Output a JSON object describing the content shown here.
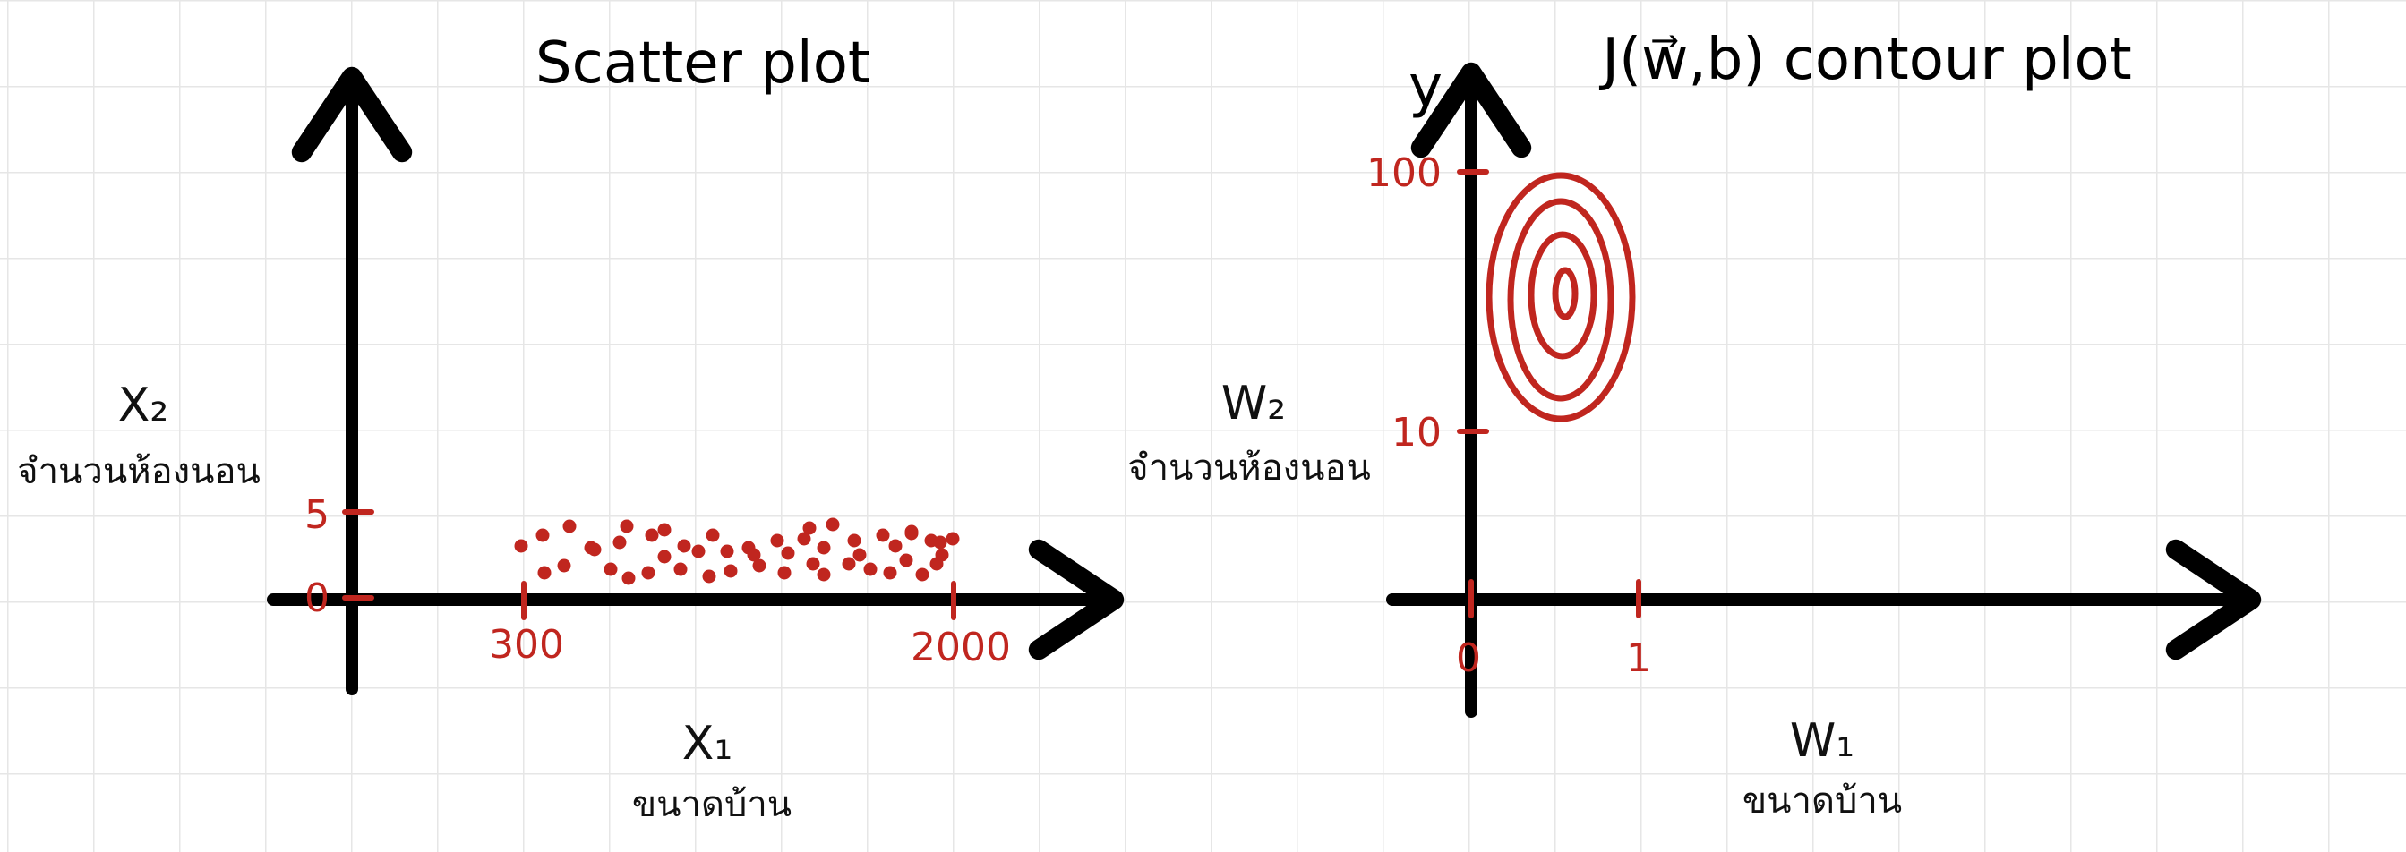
{
  "colors": {
    "axis": "#000000",
    "accent": "#c0261f",
    "grid": "#e6e6e6"
  },
  "left_plot": {
    "title": "Scatter plot",
    "y_label": "X₂",
    "y_label_thai": "จำนวนห้องนอน",
    "x_label": "X₁",
    "x_label_thai": "ขนาดบ้าน",
    "y_ticks": [
      "5",
      "0"
    ],
    "x_ticks": [
      "300",
      "2000"
    ]
  },
  "right_plot": {
    "title": "J(w⃗,b) contour plot",
    "y_axis_label": "y",
    "y_label": "W₂",
    "y_label_thai": "จำนวนห้องนอน",
    "x_label": "W₁",
    "x_label_thai": "ขนาดบ้าน",
    "y_ticks": [
      "100",
      "10"
    ],
    "x_ticks": [
      "0",
      "1"
    ]
  }
}
